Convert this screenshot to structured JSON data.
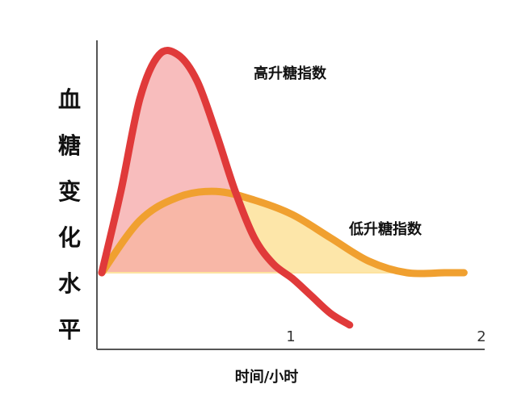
{
  "chart_data": {
    "type": "area",
    "xlabel": "时间/小时",
    "ylabel_chars": [
      "血",
      "糖",
      "变",
      "化",
      "水",
      "平"
    ],
    "xlim": [
      0,
      2
    ],
    "ylim": [
      0,
      100
    ],
    "baseline": 20,
    "x_ticks": [
      {
        "value": 1,
        "label": "1"
      },
      {
        "value": 2,
        "label": "2"
      }
    ],
    "series": [
      {
        "name": "高升糖指数",
        "stroke": "#e03a3a",
        "fill": "#f5a7a7",
        "points": [
          [
            0,
            20
          ],
          [
            0.1,
            48
          ],
          [
            0.2,
            80
          ],
          [
            0.3,
            95
          ],
          [
            0.4,
            95
          ],
          [
            0.5,
            86
          ],
          [
            0.6,
            68
          ],
          [
            0.7,
            48
          ],
          [
            0.8,
            32
          ],
          [
            0.9,
            23
          ],
          [
            1.0,
            18
          ],
          [
            1.1,
            12
          ],
          [
            1.2,
            6
          ],
          [
            1.3,
            2
          ]
        ]
      },
      {
        "name": "低升糖指数",
        "stroke": "#f0a030",
        "fill": "#fde3a0",
        "points": [
          [
            0,
            20
          ],
          [
            0.2,
            38
          ],
          [
            0.4,
            46
          ],
          [
            0.6,
            48
          ],
          [
            0.8,
            45
          ],
          [
            1.0,
            40
          ],
          [
            1.2,
            32
          ],
          [
            1.4,
            24
          ],
          [
            1.6,
            20
          ],
          [
            1.8,
            20
          ],
          [
            1.9,
            20
          ]
        ]
      }
    ]
  }
}
